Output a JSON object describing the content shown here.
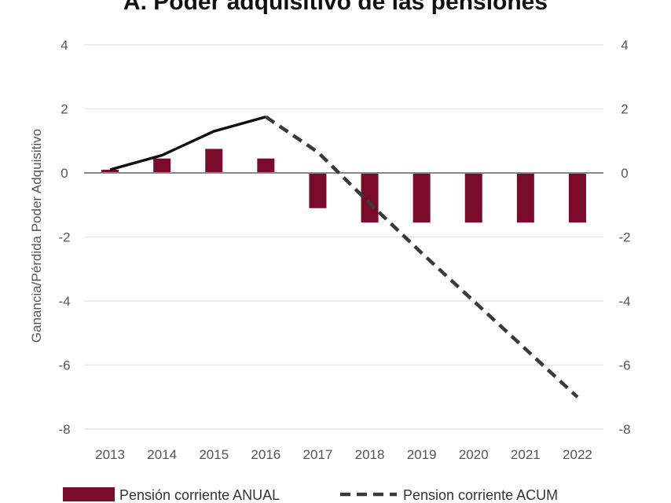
{
  "chart_data": {
    "type": "bar+line",
    "title": "A. Poder adquisitivo de las pensiones",
    "ylabel": "Ganancia/Pérdida Poder Adquisitivo",
    "xlabel": "",
    "ylim": [
      -8,
      4
    ],
    "yticks": [
      "4",
      "2",
      "0",
      "-2",
      "-4",
      "-6",
      "-8"
    ],
    "ytick_values": [
      4,
      2,
      0,
      -2,
      -4,
      -6,
      -8
    ],
    "categories": [
      "2013",
      "2014",
      "2015",
      "2016",
      "2017",
      "2018",
      "2019",
      "2020",
      "2021",
      "2022"
    ],
    "series": [
      {
        "name": "Pensión corriente ANUAL",
        "type": "bar",
        "color": "#7a0b2c",
        "values": [
          0.1,
          0.45,
          0.75,
          0.45,
          -1.1,
          -1.55,
          -1.55,
          -1.55,
          -1.55,
          -1.55
        ]
      },
      {
        "name": "Pension corriente ACUM",
        "type": "line",
        "color": "#111111",
        "dashed_color": "#3a3a3a",
        "values": [
          0.1,
          0.55,
          1.3,
          1.75,
          0.65,
          -0.95,
          -2.5,
          -4.0,
          -5.5,
          -7.0
        ],
        "solid_until_index": 3
      }
    ],
    "grid": true,
    "legend": "bottom"
  }
}
